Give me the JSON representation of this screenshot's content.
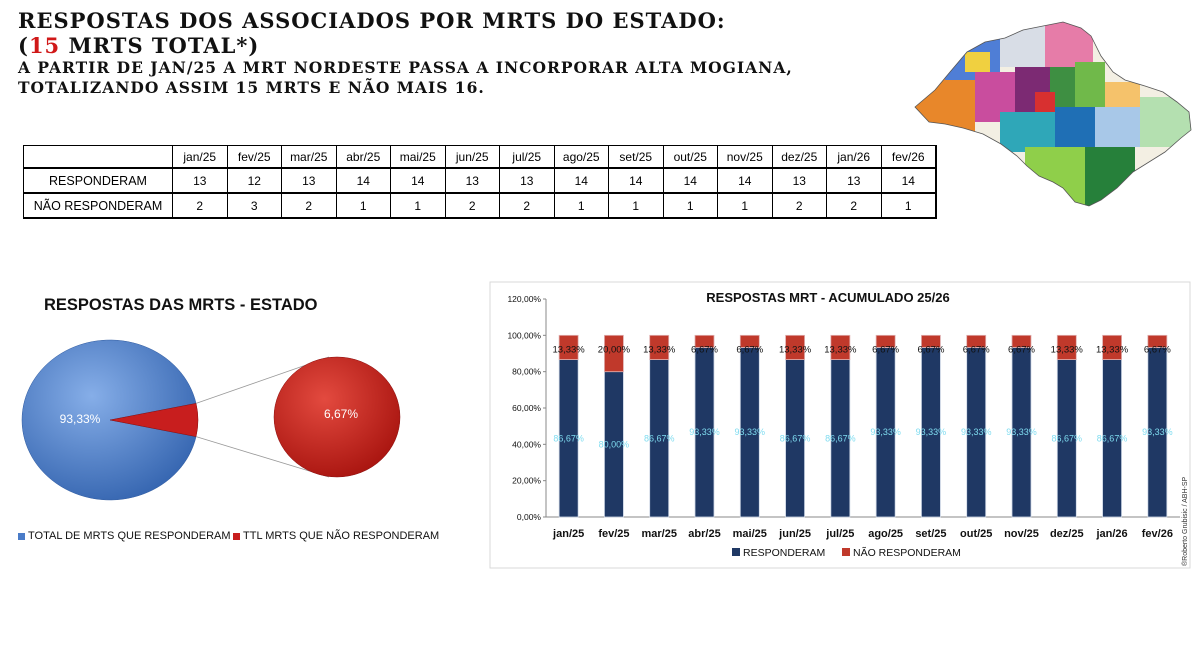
{
  "header": {
    "line1": "RESPOSTAS DOS ASSOCIADOS POR MRTS DO ESTADO:",
    "line2_open": "(",
    "line2_num": "15",
    "line2_rest": " MRTS TOTAL*)",
    "line3": "A PARTIR DE JAN/25 A MRT NORDESTE PASSA A INCORPORAR ALTA MOGIANA,",
    "line4": "TOTALIZANDO ASSIM 15 MRTS E NÃO MAIS 16."
  },
  "table": {
    "months": [
      "jan/25",
      "fev/25",
      "mar/25",
      "abr/25",
      "mai/25",
      "jun/25",
      "jul/25",
      "ago/25",
      "set/25",
      "out/25",
      "nov/25",
      "dez/25",
      "jan/26",
      "fev/26"
    ],
    "rows": [
      {
        "label": "RESPONDERAM",
        "values": [
          "13",
          "12",
          "13",
          "14",
          "14",
          "13",
          "13",
          "14",
          "14",
          "14",
          "14",
          "13",
          "13",
          "14"
        ]
      },
      {
        "label": "NÃO RESPONDERAM",
        "values": [
          "2",
          "3",
          "2",
          "1",
          "1",
          "2",
          "2",
          "1",
          "1",
          "1",
          "1",
          "2",
          "2",
          "1"
        ]
      }
    ]
  },
  "pie_chart": {
    "title": "RESPOSTAS DAS MRTS - ESTADO",
    "main_label": "93,33%",
    "detail_label": "6,67%",
    "legend": [
      "TOTAL DE MRTS QUE RESPONDERAM",
      "TTL MRTS QUE NÃO RESPONDERAM"
    ],
    "colors": {
      "blue": "#4a7cc8",
      "red": "#c81e1e"
    }
  },
  "chart_data": [
    {
      "type": "pie",
      "title": "RESPOSTAS DAS MRTS - ESTADO",
      "categories": [
        "TOTAL DE MRTS QUE RESPONDERAM",
        "TTL MRTS QUE NÃO RESPONDERAM"
      ],
      "values": [
        93.33,
        6.67
      ],
      "labels": [
        "93,33%",
        "6,67%"
      ],
      "legend_position": "bottom"
    },
    {
      "type": "bar",
      "stacked": true,
      "title": "RESPOSTAS MRT - ACUMULADO 25/26",
      "categories": [
        "jan/25",
        "fev/25",
        "mar/25",
        "abr/25",
        "mai/25",
        "jun/25",
        "jul/25",
        "ago/25",
        "set/25",
        "out/25",
        "nov/25",
        "dez/25",
        "jan/26",
        "fev/26"
      ],
      "series": [
        {
          "name": "RESPONDERAM",
          "color": "#1f3864",
          "values": [
            86.67,
            80.0,
            86.67,
            93.33,
            93.33,
            86.67,
            86.67,
            93.33,
            93.33,
            93.33,
            93.33,
            86.67,
            86.67,
            93.33
          ],
          "labels": [
            "86,67%",
            "80,00%",
            "86,67%",
            "93,33%",
            "93,33%",
            "86,67%",
            "86,67%",
            "93,33%",
            "93,33%",
            "93,33%",
            "93,33%",
            "86,67%",
            "86,67%",
            "93,33%"
          ]
        },
        {
          "name": "NÃO RESPONDERAM",
          "color": "#c0392b",
          "values": [
            13.33,
            20.0,
            13.33,
            6.67,
            6.67,
            13.33,
            13.33,
            6.67,
            6.67,
            6.67,
            6.67,
            13.33,
            13.33,
            6.67
          ],
          "labels": [
            "13,33%",
            "20,00%",
            "13,33%",
            "6,67%",
            "6,67%",
            "13,33%",
            "13,33%",
            "6,67%",
            "6,67%",
            "6,67%",
            "6,67%",
            "13,33%",
            "13,33%",
            "6,67%"
          ]
        }
      ],
      "yticks": [
        "0,00%",
        "20,00%",
        "40,00%",
        "60,00%",
        "80,00%",
        "100,00%",
        "120,00%"
      ],
      "ylim": [
        0,
        120
      ],
      "grid": false,
      "legend_position": "bottom"
    }
  ],
  "signature": "®Roberto Grubisic / ABH-SP"
}
